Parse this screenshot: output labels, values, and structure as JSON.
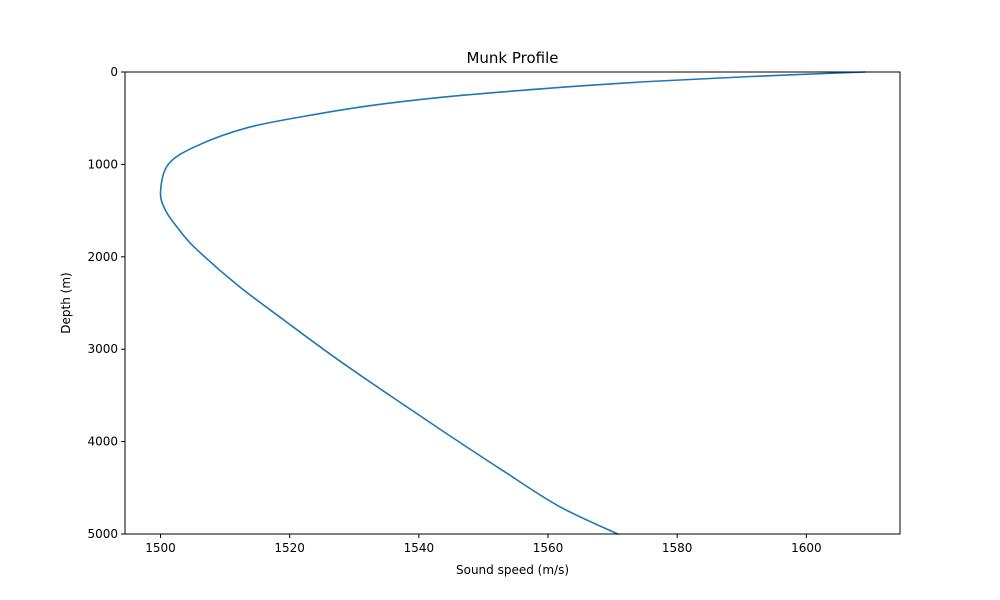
{
  "chart_data": {
    "type": "line",
    "title": "Munk Profile",
    "xlabel": "Sound speed (m/s)",
    "ylabel": "Depth (m)",
    "xlim": [
      1494.5,
      1614.5
    ],
    "ylim": [
      0,
      5000
    ],
    "y_inverted": true,
    "grid": false,
    "xticks": [
      1500,
      1520,
      1540,
      1560,
      1580,
      1600
    ],
    "yticks": [
      0,
      1000,
      2000,
      3000,
      4000,
      5000
    ],
    "series": [
      {
        "color": "#1f77b4",
        "x": [
          1609.1,
          1591.0,
          1576.5,
          1565.3,
          1547.1,
          1534.0,
          1524.7,
          1513.6,
          1505.6,
          1501.2,
          1500.0,
          1500.8,
          1502.8,
          1505.3,
          1511.8,
          1519.4,
          1527.2,
          1535.5,
          1544.0,
          1552.7,
          1561.7,
          1570.8
        ],
        "y": [
          0,
          50,
          100,
          150,
          250,
          350,
          450,
          600,
          800,
          1000,
          1300,
          1500,
          1700,
          1900,
          2300,
          2700,
          3100,
          3500,
          3900,
          4300,
          4700,
          5000
        ]
      }
    ]
  }
}
